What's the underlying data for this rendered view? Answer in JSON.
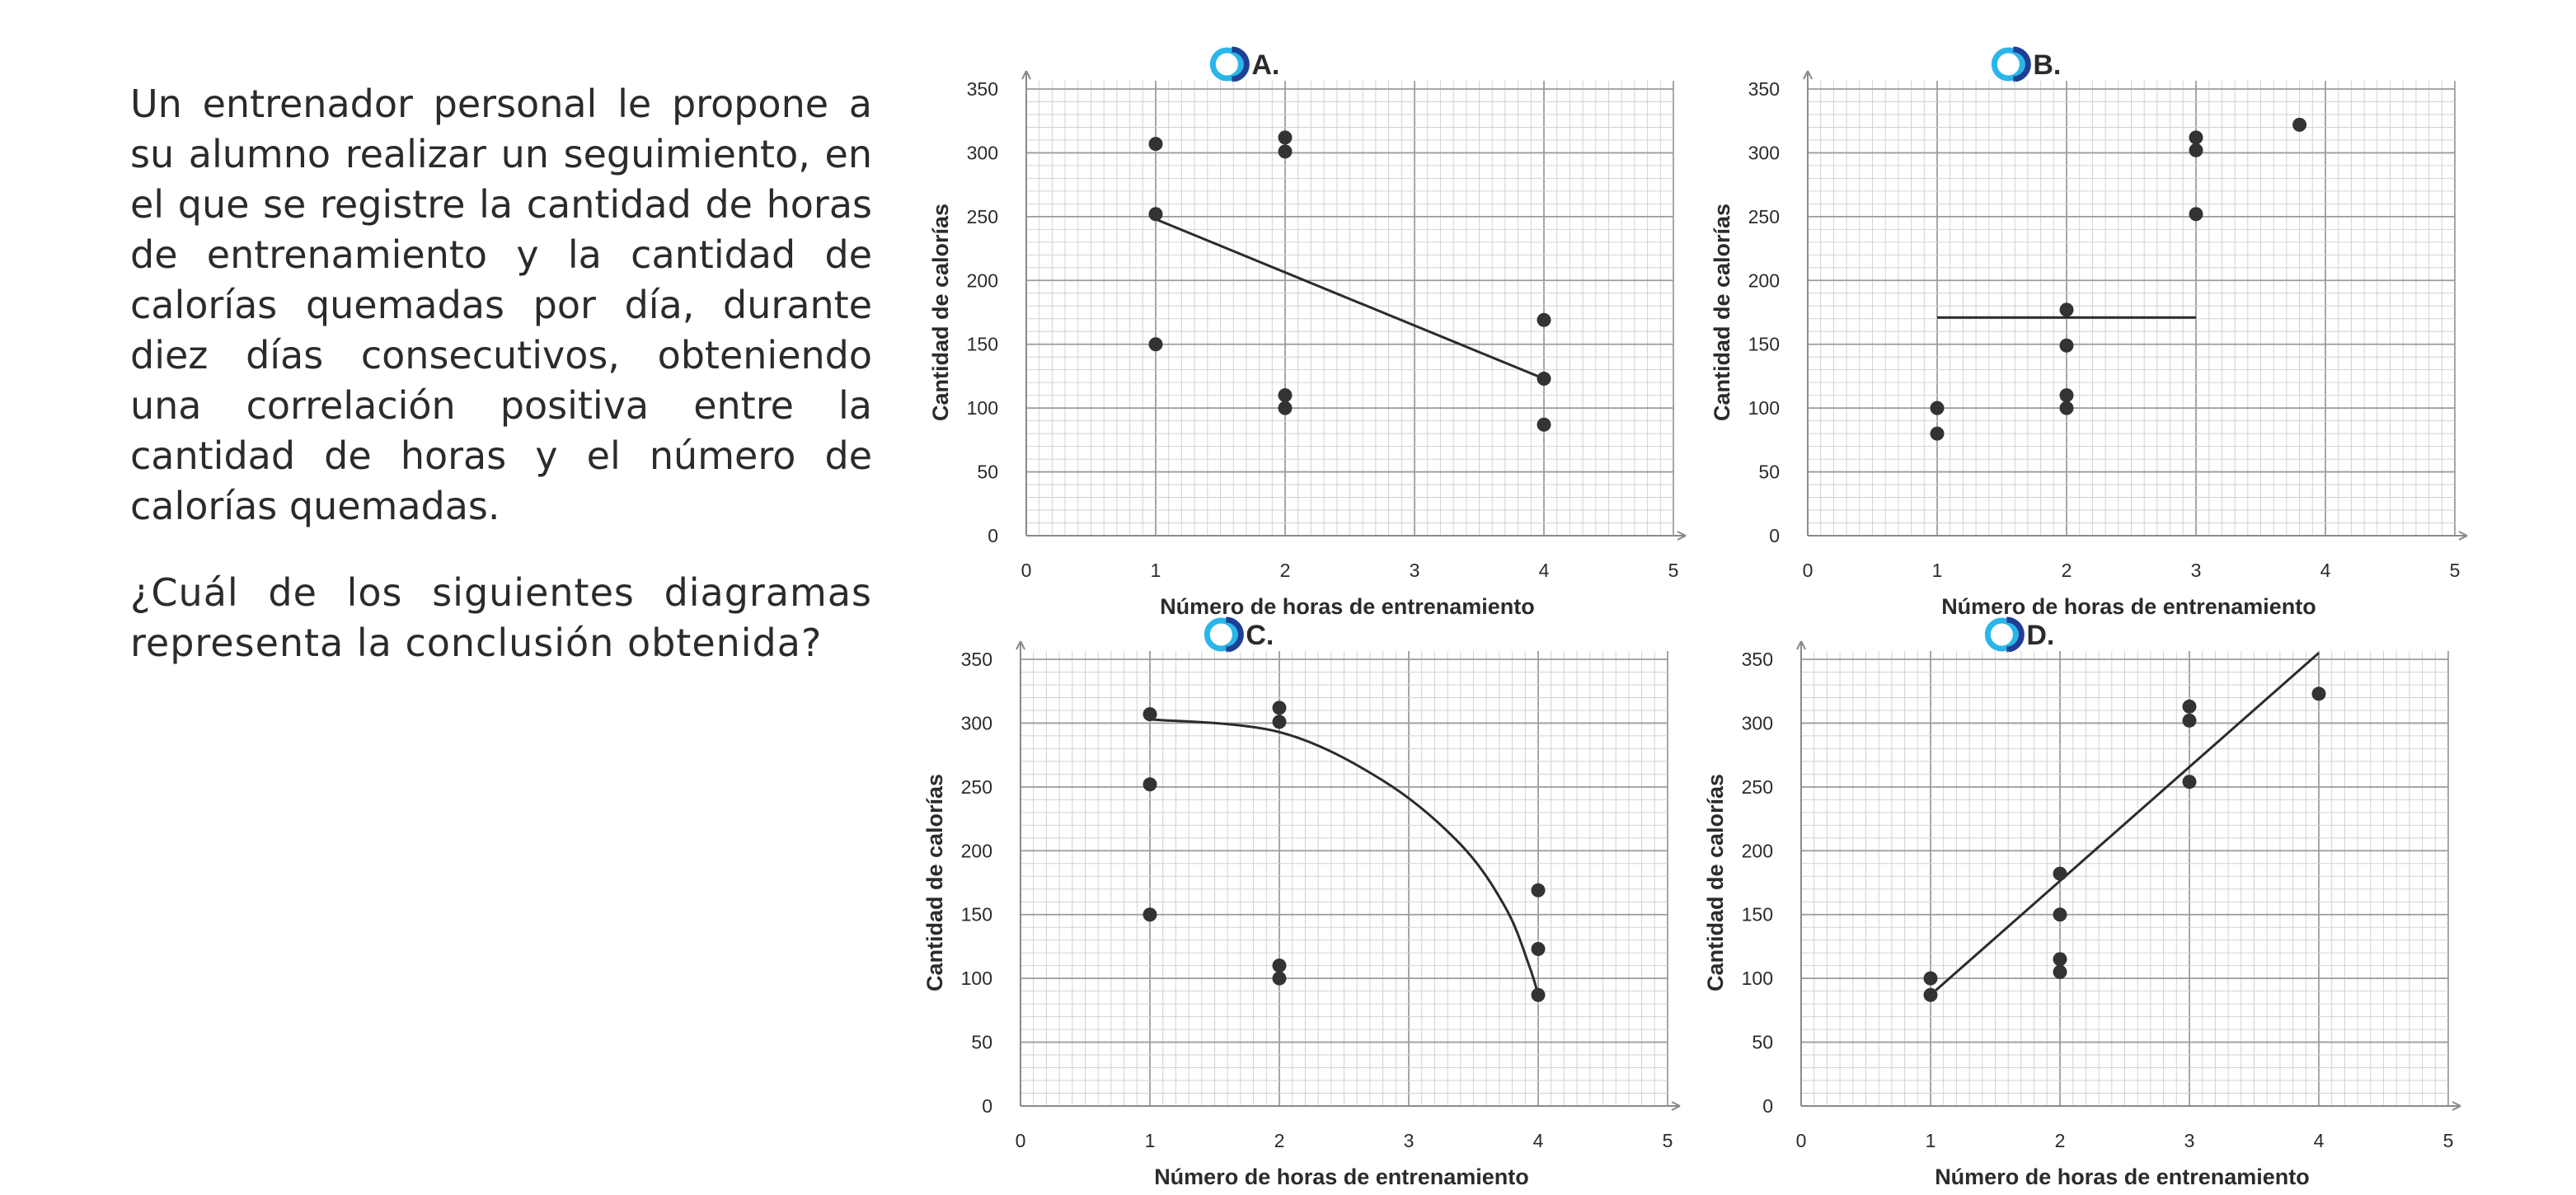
{
  "question": {
    "paragraph1": "Un entrenador personal le propone a su alumno realizar un seguimiento, en el que se registre la cantidad de horas de entrenamiento y la cantidad de calorías quemadas por día, durante diez días consecutivos, obteniendo una correlación positiva entre la cantidad de horas y el número de calorías quemadas.",
    "paragraph2": "¿Cuál de los siguientes diagramas representa la conclusión obtenida?"
  },
  "colors": {
    "text": "#2b2b2b",
    "points": "#333333",
    "grid_minor": "#d2d2d2",
    "grid_major": "#9c9c9c",
    "option_ring": "#29b6ea",
    "option_ring_dark": "#1f3f95"
  },
  "chart_data": [
    {
      "option": "A.",
      "type": "scatter",
      "xlabel": "Número de horas de entrenamiento",
      "ylabel": "Cantidad de calorías",
      "xlim": [
        0,
        5
      ],
      "ylim": [
        0,
        350
      ],
      "xticks": [
        0,
        1,
        2,
        3,
        4,
        5
      ],
      "yticks": [
        0,
        50,
        100,
        150,
        200,
        250,
        300,
        350
      ],
      "grid": true,
      "points": [
        [
          1,
          307
        ],
        [
          1,
          252
        ],
        [
          1,
          150
        ],
        [
          2,
          312
        ],
        [
          2,
          301
        ],
        [
          2,
          110
        ],
        [
          2,
          100
        ],
        [
          4,
          169
        ],
        [
          4,
          123
        ],
        [
          4,
          87
        ]
      ],
      "fit": {
        "kind": "line",
        "points": [
          [
            1,
            248
          ],
          [
            4,
            123
          ]
        ]
      }
    },
    {
      "option": "B.",
      "type": "scatter",
      "xlabel": "Número de horas de entrenamiento",
      "ylabel": "Cantidad de calorías",
      "xlim": [
        0,
        5
      ],
      "ylim": [
        0,
        350
      ],
      "xticks": [
        0,
        1,
        2,
        3,
        4,
        5
      ],
      "yticks": [
        0,
        50,
        100,
        150,
        200,
        250,
        300,
        350
      ],
      "grid": true,
      "points": [
        [
          1,
          100
        ],
        [
          1,
          80
        ],
        [
          2,
          177
        ],
        [
          2,
          149
        ],
        [
          2,
          110
        ],
        [
          2,
          100
        ],
        [
          3,
          312
        ],
        [
          3,
          302
        ],
        [
          3,
          252
        ],
        [
          3.8,
          322
        ]
      ],
      "fit": {
        "kind": "line",
        "points": [
          [
            1,
            171
          ],
          [
            3,
            171
          ]
        ]
      }
    },
    {
      "option": "C.",
      "type": "scatter",
      "xlabel": "Número de horas de entrenamiento",
      "ylabel": "Cantidad de calorías",
      "xlim": [
        0,
        5
      ],
      "ylim": [
        0,
        350
      ],
      "xticks": [
        0,
        1,
        2,
        3,
        4,
        5
      ],
      "yticks": [
        0,
        50,
        100,
        150,
        200,
        250,
        300,
        350
      ],
      "grid": true,
      "points": [
        [
          1,
          307
        ],
        [
          1,
          252
        ],
        [
          1,
          150
        ],
        [
          2,
          312
        ],
        [
          2,
          301
        ],
        [
          2,
          110
        ],
        [
          2,
          100
        ],
        [
          4,
          169
        ],
        [
          4,
          123
        ],
        [
          4,
          87
        ]
      ],
      "fit": {
        "kind": "curve",
        "points": [
          [
            1,
            303
          ],
          [
            2,
            293
          ],
          [
            2.8,
            255
          ],
          [
            3.4,
            205
          ],
          [
            3.75,
            155
          ],
          [
            3.93,
            110
          ],
          [
            4,
            87
          ]
        ]
      }
    },
    {
      "option": "D.",
      "type": "scatter",
      "xlabel": "Número de horas de entrenamiento",
      "ylabel": "Cantidad de calorías",
      "xlim": [
        0,
        5
      ],
      "ylim": [
        0,
        350
      ],
      "xticks": [
        0,
        1,
        2,
        3,
        4,
        5
      ],
      "yticks": [
        0,
        50,
        100,
        150,
        200,
        250,
        300,
        350
      ],
      "grid": true,
      "points": [
        [
          1,
          100
        ],
        [
          1,
          87
        ],
        [
          2,
          182
        ],
        [
          2,
          150
        ],
        [
          2,
          115
        ],
        [
          2,
          105
        ],
        [
          3,
          313
        ],
        [
          3,
          302
        ],
        [
          3,
          254
        ],
        [
          4,
          323
        ]
      ],
      "fit": {
        "kind": "line",
        "points": [
          [
            1,
            87
          ],
          [
            4,
            355
          ]
        ]
      }
    }
  ]
}
